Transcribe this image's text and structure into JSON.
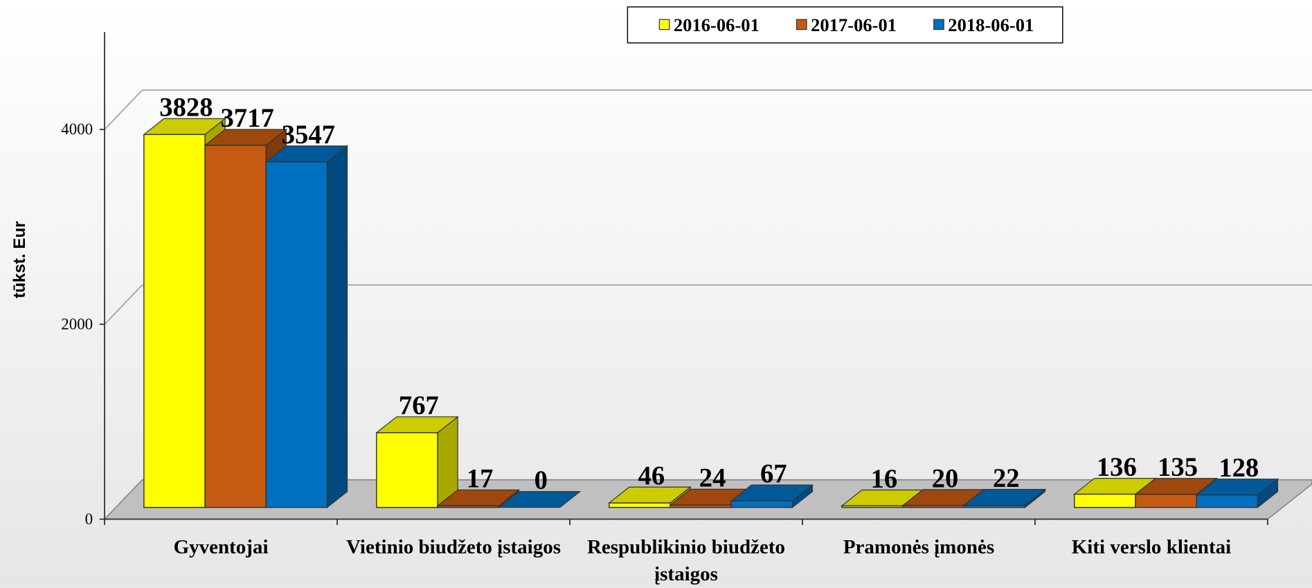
{
  "chart_data": {
    "type": "bar3d",
    "y_label": "tūkst. Eur",
    "categories": [
      "Gyventojai",
      "Vietinio biudžeto įstaigos",
      "Respublikinio biudžeto įstaigos",
      "Pramonės įmonės",
      "Kiti verslo klientai"
    ],
    "series": [
      {
        "name": "2016-06-01",
        "color": "#ffff00",
        "values": [
          3828,
          767,
          46,
          16,
          136
        ]
      },
      {
        "name": "2017-06-01",
        "color": "#c55a11",
        "values": [
          3717,
          17,
          24,
          20,
          135
        ]
      },
      {
        "name": "2018-06-01",
        "color": "#0070c0",
        "values": [
          3547,
          0,
          67,
          22,
          128
        ]
      }
    ],
    "ylim": [
      0,
      5000
    ],
    "yticks": [
      0,
      2000,
      4000
    ],
    "grid": true,
    "legend": "top"
  }
}
